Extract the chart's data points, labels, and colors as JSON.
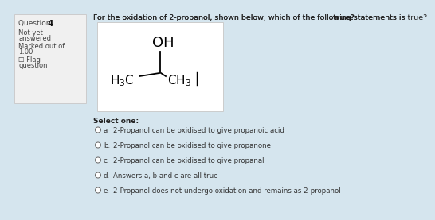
{
  "bg_color": "#d5e5ee",
  "sidebar_bg": "#f0f0f0",
  "sidebar_border": "#cccccc",
  "question_num": "4",
  "main_question": "For the oxidation of 2-propanol, shown below, which of the following statements is ",
  "main_question_bold": "true?",
  "molecule_box_bg": "#e8eef2",
  "molecule_box_border": "#cccccc",
  "select_one": "Select one:",
  "options": [
    {
      "label": "a.",
      "text": "2-Propanol can be oxidised to give propanoic acid"
    },
    {
      "label": "b.",
      "text": "2-Propanol can be oxidised to give propanone"
    },
    {
      "label": "c.",
      "text": "2-Propanol can be oxidised to give propanal"
    },
    {
      "label": "d.",
      "text": "Answers a, b and c are all true"
    },
    {
      "label": "e.",
      "text": "2-Propanol does not undergo oxidation and remains as 2-propanol"
    }
  ],
  "font_size_question": 6.8,
  "font_size_sidebar_title": 6.5,
  "font_size_sidebar": 6.0,
  "font_size_options": 6.2,
  "font_size_select": 6.5,
  "font_size_mol_main": 11.0,
  "font_size_mol_oh": 13.0
}
